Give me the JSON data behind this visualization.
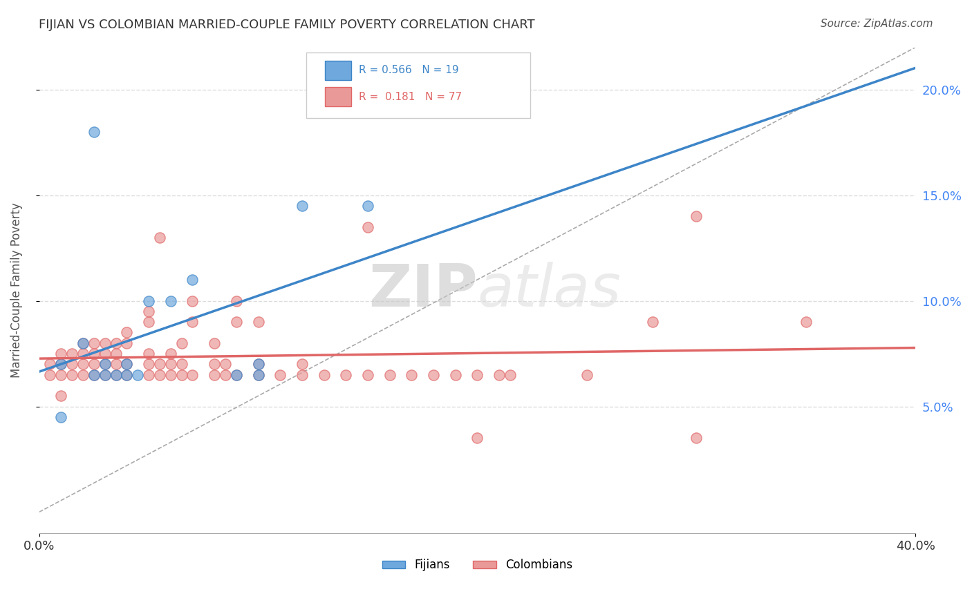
{
  "title": "FIJIAN VS COLOMBIAN MARRIED-COUPLE FAMILY POVERTY CORRELATION CHART",
  "source": "Source: ZipAtlas.com",
  "ylabel": "Married-Couple Family Poverty",
  "xlabel": "",
  "xlim": [
    0.0,
    0.4
  ],
  "ylim": [
    -0.01,
    0.22
  ],
  "ytick_labels": [
    "5.0%",
    "10.0%",
    "15.0%",
    "20.0%"
  ],
  "ytick_values": [
    0.05,
    0.1,
    0.15,
    0.2
  ],
  "xtick_labels": [
    "0.0%",
    "40.0%"
  ],
  "xtick_values": [
    0.0,
    0.4
  ],
  "fijian_color": "#6fa8dc",
  "colombian_color": "#ea9999",
  "fijian_line_color": "#3d85c8",
  "colombian_line_color": "#e06666",
  "fijian_r": 0.566,
  "fijian_n": 19,
  "colombian_r": 0.181,
  "colombian_n": 77,
  "watermark_zip": "ZIP",
  "watermark_atlas": "atlas",
  "fijian_points": [
    [
      0.01,
      0.07
    ],
    [
      0.01,
      0.045
    ],
    [
      0.02,
      0.08
    ],
    [
      0.025,
      0.065
    ],
    [
      0.03,
      0.065
    ],
    [
      0.03,
      0.07
    ],
    [
      0.035,
      0.065
    ],
    [
      0.04,
      0.065
    ],
    [
      0.04,
      0.07
    ],
    [
      0.045,
      0.065
    ],
    [
      0.05,
      0.1
    ],
    [
      0.06,
      0.1
    ],
    [
      0.07,
      0.11
    ],
    [
      0.09,
      0.065
    ],
    [
      0.1,
      0.065
    ],
    [
      0.1,
      0.07
    ],
    [
      0.12,
      0.145
    ],
    [
      0.15,
      0.145
    ],
    [
      0.025,
      0.18
    ]
  ],
  "colombian_points": [
    [
      0.005,
      0.07
    ],
    [
      0.005,
      0.065
    ],
    [
      0.01,
      0.065
    ],
    [
      0.01,
      0.07
    ],
    [
      0.01,
      0.075
    ],
    [
      0.015,
      0.065
    ],
    [
      0.015,
      0.07
    ],
    [
      0.015,
      0.075
    ],
    [
      0.02,
      0.065
    ],
    [
      0.02,
      0.07
    ],
    [
      0.02,
      0.075
    ],
    [
      0.02,
      0.08
    ],
    [
      0.025,
      0.065
    ],
    [
      0.025,
      0.07
    ],
    [
      0.025,
      0.075
    ],
    [
      0.025,
      0.08
    ],
    [
      0.03,
      0.065
    ],
    [
      0.03,
      0.07
    ],
    [
      0.03,
      0.075
    ],
    [
      0.03,
      0.08
    ],
    [
      0.035,
      0.065
    ],
    [
      0.035,
      0.07
    ],
    [
      0.035,
      0.075
    ],
    [
      0.035,
      0.08
    ],
    [
      0.04,
      0.065
    ],
    [
      0.04,
      0.07
    ],
    [
      0.04,
      0.08
    ],
    [
      0.04,
      0.085
    ],
    [
      0.05,
      0.065
    ],
    [
      0.05,
      0.07
    ],
    [
      0.05,
      0.075
    ],
    [
      0.05,
      0.09
    ],
    [
      0.05,
      0.095
    ],
    [
      0.055,
      0.065
    ],
    [
      0.055,
      0.07
    ],
    [
      0.055,
      0.13
    ],
    [
      0.06,
      0.065
    ],
    [
      0.06,
      0.07
    ],
    [
      0.06,
      0.075
    ],
    [
      0.065,
      0.065
    ],
    [
      0.065,
      0.07
    ],
    [
      0.065,
      0.08
    ],
    [
      0.07,
      0.065
    ],
    [
      0.07,
      0.09
    ],
    [
      0.07,
      0.1
    ],
    [
      0.08,
      0.065
    ],
    [
      0.08,
      0.07
    ],
    [
      0.08,
      0.08
    ],
    [
      0.085,
      0.065
    ],
    [
      0.085,
      0.07
    ],
    [
      0.09,
      0.065
    ],
    [
      0.09,
      0.09
    ],
    [
      0.09,
      0.1
    ],
    [
      0.1,
      0.065
    ],
    [
      0.1,
      0.07
    ],
    [
      0.1,
      0.09
    ],
    [
      0.11,
      0.065
    ],
    [
      0.12,
      0.065
    ],
    [
      0.12,
      0.07
    ],
    [
      0.13,
      0.065
    ],
    [
      0.14,
      0.065
    ],
    [
      0.15,
      0.065
    ],
    [
      0.16,
      0.065
    ],
    [
      0.17,
      0.065
    ],
    [
      0.18,
      0.065
    ],
    [
      0.19,
      0.065
    ],
    [
      0.2,
      0.065
    ],
    [
      0.21,
      0.065
    ],
    [
      0.215,
      0.065
    ],
    [
      0.25,
      0.065
    ],
    [
      0.28,
      0.09
    ],
    [
      0.15,
      0.135
    ],
    [
      0.2,
      0.035
    ],
    [
      0.3,
      0.035
    ],
    [
      0.3,
      0.14
    ],
    [
      0.35,
      0.09
    ],
    [
      0.01,
      0.055
    ]
  ],
  "background_color": "#ffffff",
  "grid_color": "#dddddd",
  "title_color": "#333333",
  "axis_label_color": "#555555",
  "tick_label_color_right": "#4285f4",
  "tick_label_color_bottom": "#333333"
}
